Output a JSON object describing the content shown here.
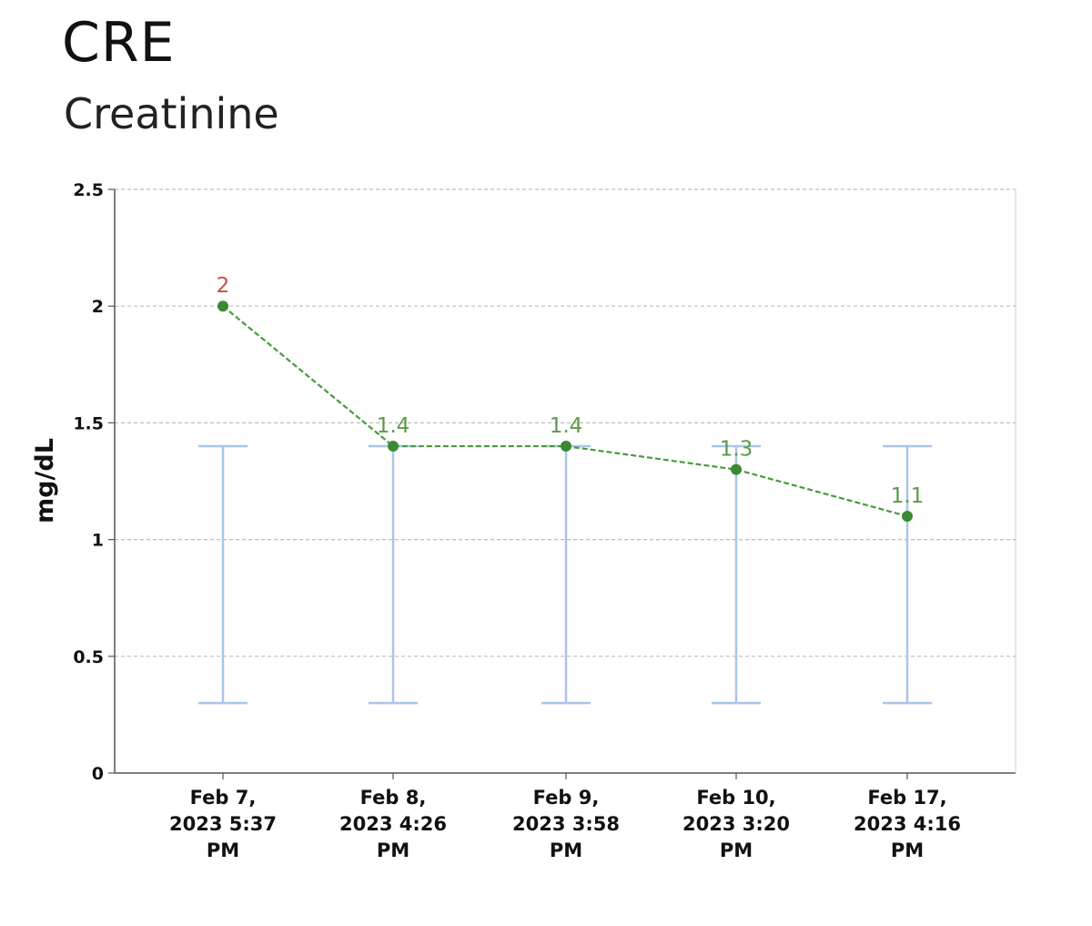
{
  "header": {
    "title": "CRE",
    "subtitle": "Creatinine"
  },
  "chart_data": {
    "type": "line",
    "title": "CRE",
    "subtitle": "Creatinine",
    "xlabel": "",
    "ylabel": "mg/dL",
    "ylim": [
      0,
      2.5
    ],
    "yticks": [
      "0",
      "0.5",
      "1",
      "1.5",
      "2",
      "2.5"
    ],
    "grid": true,
    "categories": [
      [
        "Feb 7,",
        "2023 5:37",
        "PM"
      ],
      [
        "Feb 8,",
        "2023 4:26",
        "PM"
      ],
      [
        "Feb 9,",
        "2023 3:58",
        "PM"
      ],
      [
        "Feb 10,",
        "2023 3:20",
        "PM"
      ],
      [
        "Feb 17,",
        "2023 4:16",
        "PM"
      ]
    ],
    "values": [
      2,
      1.4,
      1.4,
      1.3,
      1.1
    ],
    "labels": [
      "2",
      "1.4",
      "1.4",
      "1.3",
      "1.1"
    ],
    "reference_range": [
      {
        "low": 0.3,
        "high": 1.4
      },
      {
        "low": 0.3,
        "high": 1.4
      },
      {
        "low": 0.3,
        "high": 1.4
      },
      {
        "low": 0.3,
        "high": 1.4
      },
      {
        "low": 0.3,
        "high": 1.4
      }
    ],
    "label_colors": [
      "#c0504d",
      "#5a9a4a",
      "#5a9a4a",
      "#5a9a4a",
      "#5a9a4a"
    ],
    "colors": {
      "line": "#4a9a40",
      "point": "#3a8a35",
      "range": "#a9c6e8",
      "grid": "#bdbdbd",
      "axis": "#555555"
    }
  }
}
